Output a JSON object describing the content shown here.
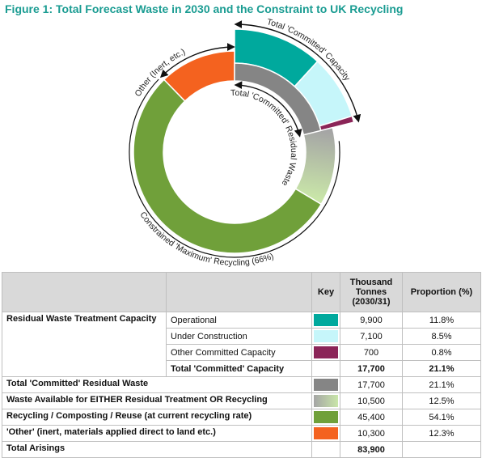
{
  "chart_data": {
    "type": "donut",
    "title": "Figure 1: Total Forecast Waste in 2030 and the Constraint to UK Recycling",
    "values": [
      9900,
      7100,
      700,
      10500,
      45400,
      10300
    ],
    "colors": [
      "#00a99d",
      "#c6f6fa",
      "#8b2558",
      [
        "#a5a5a5",
        "#c9e6a8"
      ],
      "#70a03a",
      "#f4621f"
    ],
    "inner_values": [
      17700
    ],
    "inner_color": "#858585",
    "annotations": [
      "Total 'Committed' Capacity",
      "Other (Inert, etc.)",
      "Total 'Committed' Residual Waste",
      "Constrained 'Maximum' Recycling (66%)"
    ]
  },
  "table": {
    "header": {
      "key": "Key",
      "tonnes": "Thousand Tonnes (2030/31)",
      "proportion": "Proportion (%)"
    },
    "rows": [
      {
        "label": "Residual Waste Treatment Capacity",
        "sub": "Operational",
        "key": "#00a99d",
        "tonnes": "9,900",
        "proportion": "11.8%"
      },
      {
        "sub": "Under Construction",
        "key": "#c6f6fa",
        "tonnes": "7,100",
        "proportion": "8.5%"
      },
      {
        "sub": "Other Committed Capacity",
        "key": "#8b2558",
        "tonnes": "700",
        "proportion": "0.8%"
      },
      {
        "sub": "Total 'Committed' Capacity",
        "key": "#ffffff",
        "tonnes": "17,700",
        "proportion": "21.1%",
        "bold": true
      },
      {
        "label": "Total 'Committed' Residual Waste",
        "key": "#858585",
        "tonnes": "17,700",
        "proportion": "21.1%"
      },
      {
        "label": "Waste Available for EITHER Residual Treatment OR Recycling",
        "key": [
          "#a5a5a5",
          "#c9e6a8"
        ],
        "tonnes": "10,500",
        "proportion": "12.5%"
      },
      {
        "label": "Recycling / Composting / Reuse (at current recycling rate)",
        "key": "#70a03a",
        "tonnes": "45,400",
        "proportion": "54.1%"
      },
      {
        "label": "'Other' (inert, materials applied direct to land etc.)",
        "key": "#f4621f",
        "tonnes": "10,300",
        "proportion": "12.3%"
      },
      {
        "label": "Total Arisings",
        "tonnes": "83,900",
        "bold": true
      }
    ]
  }
}
